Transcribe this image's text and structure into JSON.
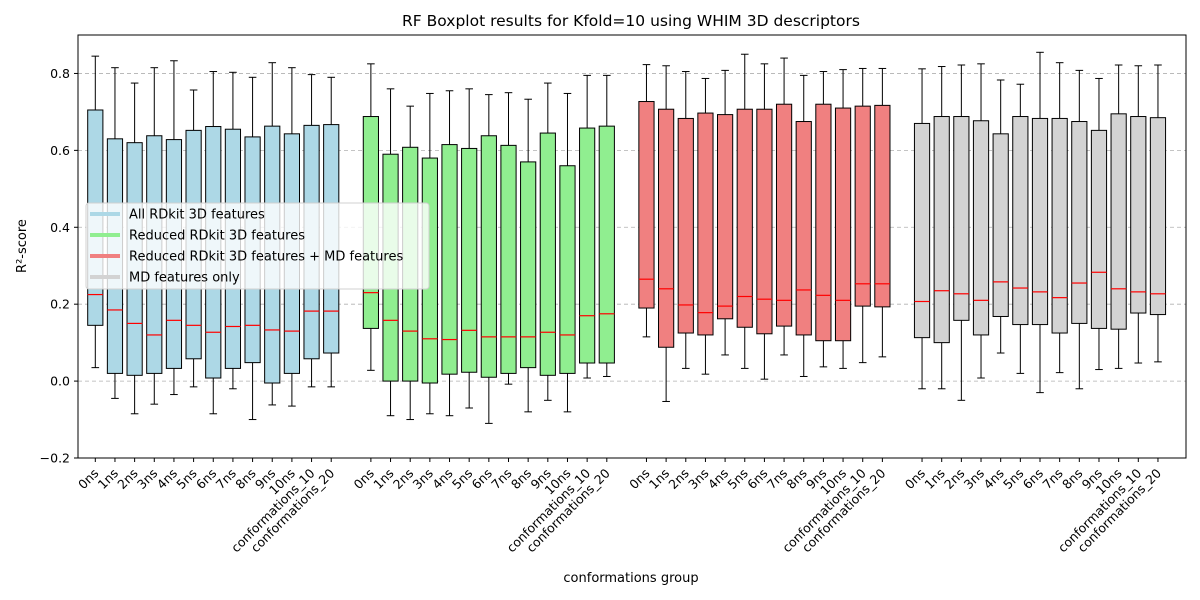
{
  "chart_data": {
    "type": "boxplot",
    "title": "RF Boxplot results for Kfold=10 using WHIM 3D descriptors",
    "xlabel": "conformations group",
    "ylabel": "R²-score",
    "ylim": [
      -0.2,
      0.9
    ],
    "yticks": [
      -0.2,
      0.0,
      0.2,
      0.4,
      0.6,
      0.8
    ],
    "ytick_labels": [
      "−0.2",
      "0.0",
      "0.2",
      "0.4",
      "0.6",
      "0.8"
    ],
    "grid": "y-dashed",
    "legend_position": "center-left",
    "median_color": "#ff0000",
    "categories": [
      "0ns",
      "1ns",
      "2ns",
      "3ns",
      "4ns",
      "5ns",
      "6ns",
      "7ns",
      "8ns",
      "9ns",
      "10ns",
      "conformations_10",
      "conformations_20"
    ],
    "groups": [
      {
        "name": "All RDkit 3D features",
        "color": "#add8e6",
        "boxes": [
          {
            "whislo": 0.035,
            "q1": 0.145,
            "med": 0.225,
            "q3": 0.705,
            "whishi": 0.845
          },
          {
            "whislo": -0.045,
            "q1": 0.02,
            "med": 0.185,
            "q3": 0.63,
            "whishi": 0.815
          },
          {
            "whislo": -0.085,
            "q1": 0.015,
            "med": 0.15,
            "q3": 0.62,
            "whishi": 0.775
          },
          {
            "whislo": -0.06,
            "q1": 0.02,
            "med": 0.12,
            "q3": 0.638,
            "whishi": 0.815
          },
          {
            "whislo": -0.035,
            "q1": 0.033,
            "med": 0.158,
            "q3": 0.628,
            "whishi": 0.833
          },
          {
            "whislo": -0.015,
            "q1": 0.058,
            "med": 0.145,
            "q3": 0.652,
            "whishi": 0.757
          },
          {
            "whislo": -0.085,
            "q1": 0.008,
            "med": 0.127,
            "q3": 0.662,
            "whishi": 0.805
          },
          {
            "whislo": -0.02,
            "q1": 0.033,
            "med": 0.142,
            "q3": 0.655,
            "whishi": 0.803
          },
          {
            "whislo": -0.1,
            "q1": 0.048,
            "med": 0.145,
            "q3": 0.635,
            "whishi": 0.79
          },
          {
            "whislo": -0.062,
            "q1": -0.005,
            "med": 0.133,
            "q3": 0.663,
            "whishi": 0.828
          },
          {
            "whislo": -0.065,
            "q1": 0.02,
            "med": 0.13,
            "q3": 0.643,
            "whishi": 0.815
          },
          {
            "whislo": -0.015,
            "q1": 0.058,
            "med": 0.182,
            "q3": 0.665,
            "whishi": 0.797
          },
          {
            "whislo": -0.015,
            "q1": 0.073,
            "med": 0.182,
            "q3": 0.667,
            "whishi": 0.79
          }
        ]
      },
      {
        "name": "Reduced RDkit 3D features",
        "color": "#90ee90",
        "boxes": [
          {
            "whislo": 0.028,
            "q1": 0.137,
            "med": 0.23,
            "q3": 0.688,
            "whishi": 0.825
          },
          {
            "whislo": -0.09,
            "q1": 0.0,
            "med": 0.158,
            "q3": 0.59,
            "whishi": 0.76
          },
          {
            "whislo": -0.1,
            "q1": 0.0,
            "med": 0.13,
            "q3": 0.608,
            "whishi": 0.715
          },
          {
            "whislo": -0.085,
            "q1": -0.005,
            "med": 0.11,
            "q3": 0.58,
            "whishi": 0.748
          },
          {
            "whislo": -0.09,
            "q1": 0.018,
            "med": 0.108,
            "q3": 0.615,
            "whishi": 0.755
          },
          {
            "whislo": -0.07,
            "q1": 0.023,
            "med": 0.132,
            "q3": 0.605,
            "whishi": 0.76
          },
          {
            "whislo": -0.11,
            "q1": 0.01,
            "med": 0.115,
            "q3": 0.638,
            "whishi": 0.745
          },
          {
            "whislo": -0.008,
            "q1": 0.02,
            "med": 0.115,
            "q3": 0.613,
            "whishi": 0.75
          },
          {
            "whislo": -0.08,
            "q1": 0.035,
            "med": 0.115,
            "q3": 0.57,
            "whishi": 0.733
          },
          {
            "whislo": -0.05,
            "q1": 0.015,
            "med": 0.127,
            "q3": 0.645,
            "whishi": 0.775
          },
          {
            "whislo": -0.08,
            "q1": 0.02,
            "med": 0.12,
            "q3": 0.56,
            "whishi": 0.748
          },
          {
            "whislo": 0.008,
            "q1": 0.047,
            "med": 0.17,
            "q3": 0.658,
            "whishi": 0.795
          },
          {
            "whislo": 0.012,
            "q1": 0.047,
            "med": 0.175,
            "q3": 0.663,
            "whishi": 0.795
          }
        ]
      },
      {
        "name": "Reduced RDkit 3D features + MD features",
        "color": "#f08080",
        "boxes": [
          {
            "whislo": 0.115,
            "q1": 0.19,
            "med": 0.265,
            "q3": 0.727,
            "whishi": 0.823
          },
          {
            "whislo": -0.053,
            "q1": 0.088,
            "med": 0.24,
            "q3": 0.707,
            "whishi": 0.82
          },
          {
            "whislo": 0.033,
            "q1": 0.125,
            "med": 0.198,
            "q3": 0.683,
            "whishi": 0.805
          },
          {
            "whislo": 0.018,
            "q1": 0.12,
            "med": 0.178,
            "q3": 0.697,
            "whishi": 0.787
          },
          {
            "whislo": 0.068,
            "q1": 0.162,
            "med": 0.195,
            "q3": 0.693,
            "whishi": 0.808
          },
          {
            "whislo": 0.033,
            "q1": 0.14,
            "med": 0.22,
            "q3": 0.707,
            "whishi": 0.85
          },
          {
            "whislo": 0.005,
            "q1": 0.123,
            "med": 0.213,
            "q3": 0.707,
            "whishi": 0.825
          },
          {
            "whislo": 0.068,
            "q1": 0.143,
            "med": 0.21,
            "q3": 0.72,
            "whishi": 0.84
          },
          {
            "whislo": 0.012,
            "q1": 0.12,
            "med": 0.237,
            "q3": 0.675,
            "whishi": 0.795
          },
          {
            "whislo": 0.037,
            "q1": 0.105,
            "med": 0.223,
            "q3": 0.72,
            "whishi": 0.805
          },
          {
            "whislo": 0.033,
            "q1": 0.105,
            "med": 0.21,
            "q3": 0.71,
            "whishi": 0.81
          },
          {
            "whislo": 0.048,
            "q1": 0.195,
            "med": 0.253,
            "q3": 0.715,
            "whishi": 0.813
          },
          {
            "whislo": 0.063,
            "q1": 0.193,
            "med": 0.253,
            "q3": 0.717,
            "whishi": 0.813
          }
        ]
      },
      {
        "name": "MD features only",
        "color": "#d3d3d3",
        "boxes": [
          {
            "whislo": -0.02,
            "q1": 0.113,
            "med": 0.207,
            "q3": 0.67,
            "whishi": 0.812
          },
          {
            "whislo": -0.02,
            "q1": 0.1,
            "med": 0.235,
            "q3": 0.688,
            "whishi": 0.818
          },
          {
            "whislo": -0.05,
            "q1": 0.158,
            "med": 0.227,
            "q3": 0.688,
            "whishi": 0.822
          },
          {
            "whislo": 0.008,
            "q1": 0.12,
            "med": 0.21,
            "q3": 0.677,
            "whishi": 0.825
          },
          {
            "whislo": 0.073,
            "q1": 0.168,
            "med": 0.258,
            "q3": 0.643,
            "whishi": 0.783
          },
          {
            "whislo": 0.02,
            "q1": 0.147,
            "med": 0.242,
            "q3": 0.688,
            "whishi": 0.772
          },
          {
            "whislo": -0.03,
            "q1": 0.147,
            "med": 0.232,
            "q3": 0.683,
            "whishi": 0.855
          },
          {
            "whislo": 0.022,
            "q1": 0.125,
            "med": 0.217,
            "q3": 0.683,
            "whishi": 0.828
          },
          {
            "whislo": -0.02,
            "q1": 0.15,
            "med": 0.255,
            "q3": 0.675,
            "whishi": 0.808
          },
          {
            "whislo": 0.03,
            "q1": 0.137,
            "med": 0.283,
            "q3": 0.652,
            "whishi": 0.787
          },
          {
            "whislo": 0.033,
            "q1": 0.135,
            "med": 0.24,
            "q3": 0.695,
            "whishi": 0.822
          },
          {
            "whislo": 0.047,
            "q1": 0.177,
            "med": 0.232,
            "q3": 0.688,
            "whishi": 0.82
          },
          {
            "whislo": 0.05,
            "q1": 0.173,
            "med": 0.227,
            "q3": 0.685,
            "whishi": 0.822
          }
        ]
      }
    ]
  }
}
